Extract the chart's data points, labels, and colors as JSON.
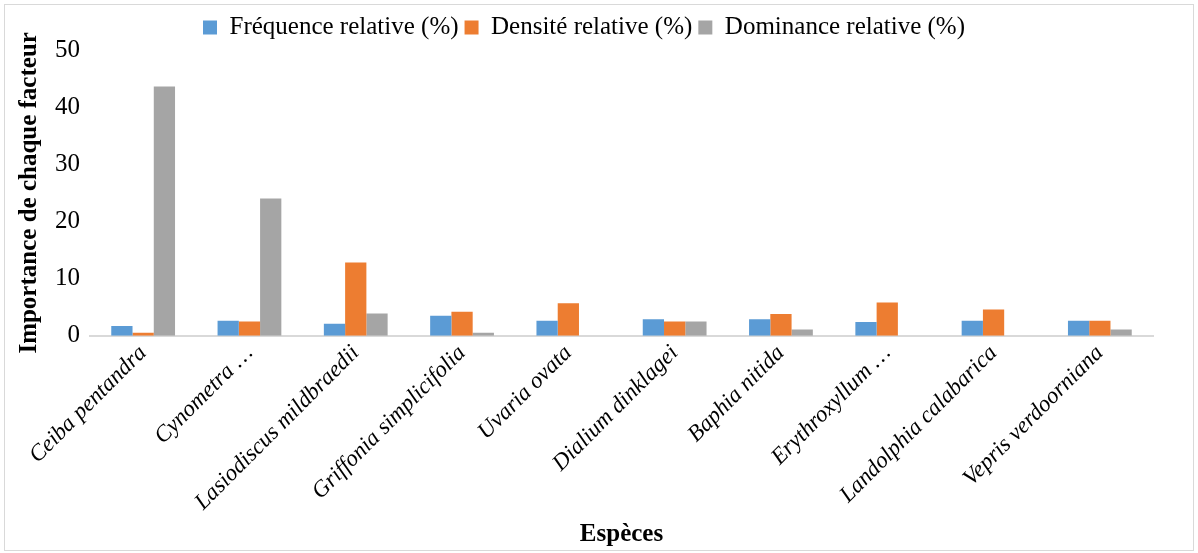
{
  "chart_data": {
    "type": "bar",
    "xlabel": "Espèces",
    "ylabel": "Importance de chaque facteur",
    "categories": [
      "Ceiba pentandra",
      "Cynometra …",
      "Lasiodiscus mildbraedii",
      "Griffonia simplicifolia",
      "Uvaria ovata",
      "Dialium dinklagei",
      "Baphia nitida",
      "Erythroxyllum …",
      "Landolphia calabarica",
      "Vepris verdoorniana"
    ],
    "series": [
      {
        "name": "Fréquence relative (%)",
        "color": "#5b9bd5",
        "values": [
          1.7,
          2.6,
          2.1,
          3.5,
          2.6,
          2.9,
          2.9,
          2.4,
          2.6,
          2.6
        ]
      },
      {
        "name": "Densité relative (%)",
        "color": "#ed7d31",
        "values": [
          0.5,
          2.5,
          12.8,
          4.2,
          5.7,
          2.5,
          3.8,
          5.8,
          4.6,
          2.6
        ]
      },
      {
        "name": "Dominance relative (%)",
        "color": "#a5a5a5",
        "values": [
          43.6,
          24.0,
          3.9,
          0.5,
          0,
          2.5,
          1.1,
          0,
          0,
          1.1
        ]
      }
    ],
    "ylim": [
      0,
      50
    ],
    "yticks": [
      0,
      10,
      20,
      30,
      40,
      50
    ],
    "grid": false,
    "legend": "top"
  }
}
